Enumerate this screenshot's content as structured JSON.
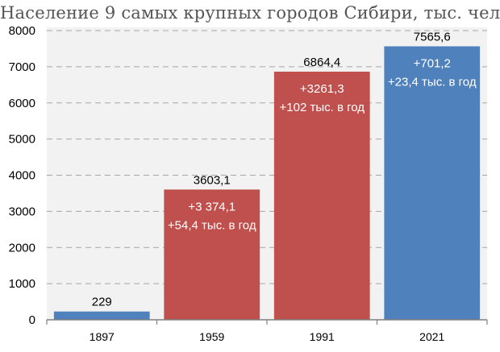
{
  "chart_data": {
    "type": "bar",
    "title": "Население 9 самых крупных городов Сибири, тыс. чел",
    "categories": [
      "1897",
      "1959",
      "1991",
      "2021"
    ],
    "values": [
      229,
      3603.1,
      6864.4,
      7565.6
    ],
    "value_labels": [
      "229",
      "3603,1",
      "6864,4",
      "7565,6"
    ],
    "bar_annotations": [
      [],
      [
        "+3 374,1",
        "+54,4 тыс. в год"
      ],
      [
        "+3261,3",
        "+102 тыс. в год"
      ],
      [
        "+701,2",
        "+23,4 тыс. в год"
      ]
    ],
    "bar_colors": [
      "#4f81bd",
      "#c0504d",
      "#c0504d",
      "#4f81bd"
    ],
    "ylim": [
      0,
      8000
    ],
    "yticks": [
      0,
      1000,
      2000,
      3000,
      4000,
      5000,
      6000,
      7000,
      8000
    ],
    "grid": true,
    "xlabel": "",
    "ylabel": ""
  }
}
